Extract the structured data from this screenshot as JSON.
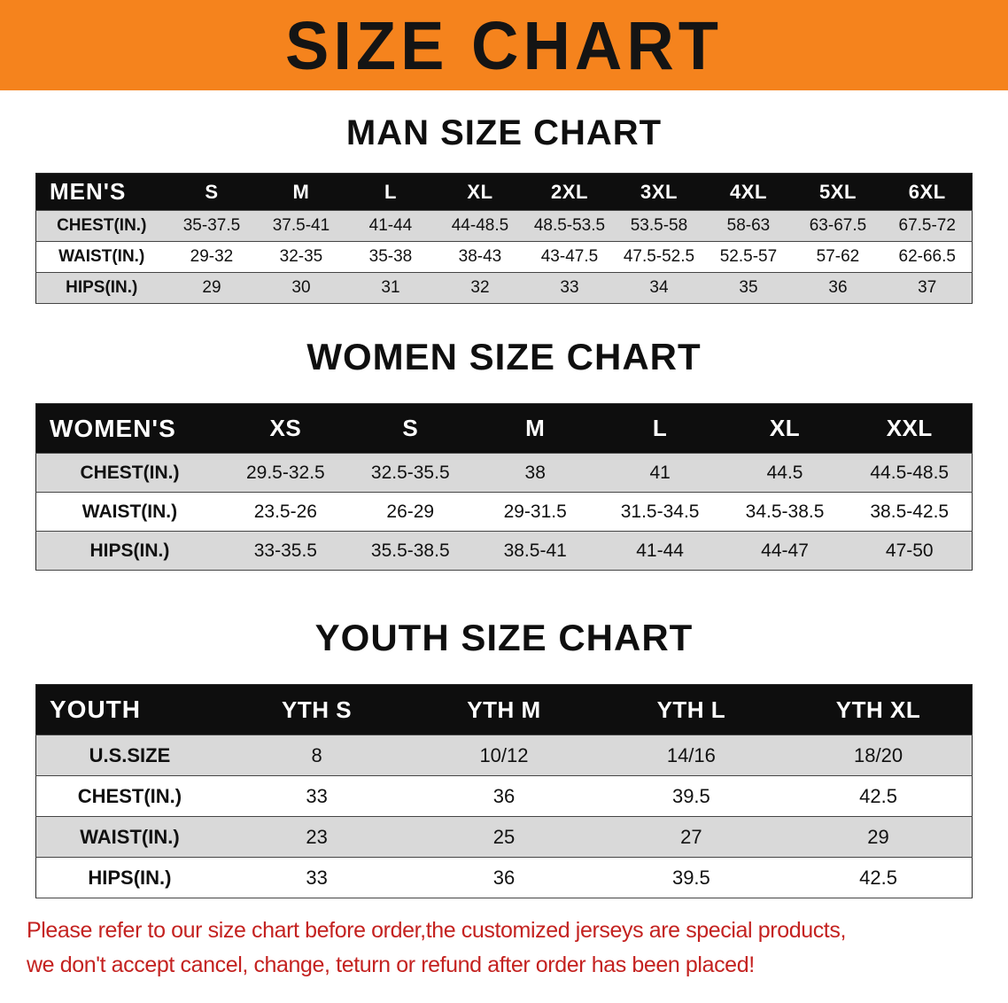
{
  "colors": {
    "accent": "#F5831D",
    "table_head": "#0E0E0E",
    "row_shade": "#D9D9D9",
    "notice": "#C42220"
  },
  "banner": {
    "title": "SIZE CHART"
  },
  "sections": [
    {
      "heading": "MAN SIZE CHART",
      "table": {
        "header": [
          "MEN'S",
          "S",
          "M",
          "L",
          "XL",
          "2XL",
          "3XL",
          "4XL",
          "5XL",
          "6XL"
        ],
        "rows": [
          {
            "label": "CHEST(IN.)",
            "values": [
              "35-37.5",
              "37.5-41",
              "41-44",
              "44-48.5",
              "48.5-53.5",
              "53.5-58",
              "58-63",
              "63-67.5",
              "67.5-72"
            ]
          },
          {
            "label": "WAIST(IN.)",
            "values": [
              "29-32",
              "32-35",
              "35-38",
              "38-43",
              "43-47.5",
              "47.5-52.5",
              "52.5-57",
              "57-62",
              "62-66.5"
            ]
          },
          {
            "label": "HIPS(IN.)",
            "values": [
              "29",
              "30",
              "31",
              "32",
              "33",
              "34",
              "35",
              "36",
              "37"
            ]
          }
        ]
      }
    },
    {
      "heading": "WOMEN SIZE CHART",
      "table": {
        "header": [
          "WOMEN'S",
          "XS",
          "S",
          "M",
          "L",
          "XL",
          "XXL"
        ],
        "rows": [
          {
            "label": "CHEST(IN.)",
            "values": [
              "29.5-32.5",
              "32.5-35.5",
              "38",
              "41",
              "44.5",
              "44.5-48.5"
            ]
          },
          {
            "label": "WAIST(IN.)",
            "values": [
              "23.5-26",
              "26-29",
              "29-31.5",
              "31.5-34.5",
              "34.5-38.5",
              "38.5-42.5"
            ]
          },
          {
            "label": "HIPS(IN.)",
            "values": [
              "33-35.5",
              "35.5-38.5",
              "38.5-41",
              "41-44",
              "44-47",
              "47-50"
            ]
          }
        ]
      }
    },
    {
      "heading": "YOUTH SIZE CHART",
      "table": {
        "header": [
          "YOUTH",
          "YTH S",
          "YTH M",
          "YTH L",
          "YTH XL"
        ],
        "rows": [
          {
            "label": "U.S.SIZE",
            "values": [
              "8",
              "10/12",
              "14/16",
              "18/20"
            ]
          },
          {
            "label": "CHEST(IN.)",
            "values": [
              "33",
              "36",
              "39.5",
              "42.5"
            ]
          },
          {
            "label": "WAIST(IN.)",
            "values": [
              "23",
              "25",
              "27",
              "29"
            ]
          },
          {
            "label": "HIPS(IN.)",
            "values": [
              "33",
              "36",
              "39.5",
              "42.5"
            ]
          }
        ]
      }
    }
  ],
  "footer": {
    "line1": "Please refer to our size chart before order,the customized jerseys are special products,",
    "line2": "we don't accept cancel, change, teturn or refund after order has been placed!"
  }
}
